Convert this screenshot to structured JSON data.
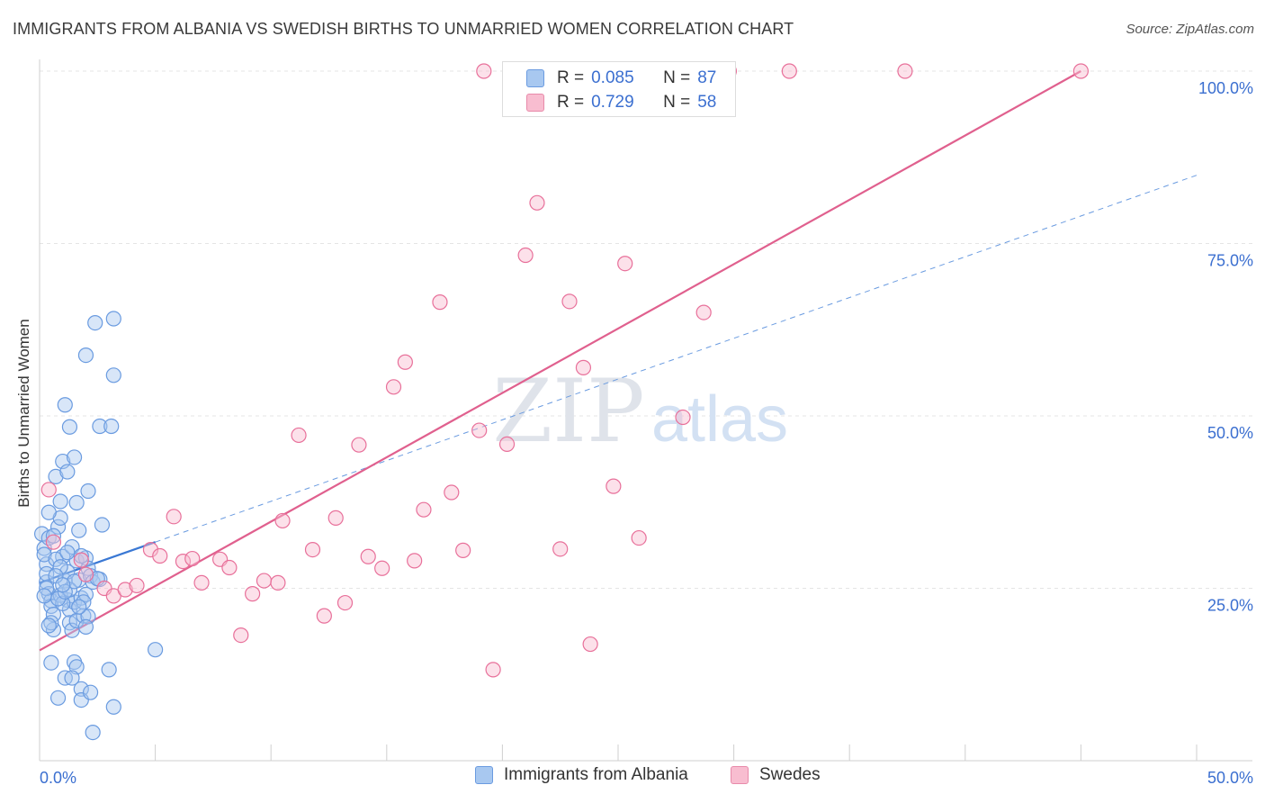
{
  "title": "IMMIGRANTS FROM ALBANIA VS SWEDISH BIRTHS TO UNMARRIED WOMEN CORRELATION CHART",
  "source": "Source: ZipAtlas.com",
  "watermark": {
    "zip": "ZIP",
    "atlas": "atlas"
  },
  "legend_top": {
    "rows": [
      {
        "r_label": "R =",
        "r_value": "0.085",
        "n_label": "N =",
        "n_value": "87",
        "color": "#a8c8f0",
        "stroke": "#6a9be0"
      },
      {
        "r_label": "R =",
        "r_value": "0.729",
        "n_label": "N =",
        "n_value": "58",
        "color": "#f8bdd0",
        "stroke": "#e88aaa"
      }
    ]
  },
  "legend_bottom": {
    "items": [
      {
        "label": "Immigrants from Albania",
        "color": "#a8c8f0",
        "stroke": "#6a9be0"
      },
      {
        "label": "Swedes",
        "color": "#f8bdd0",
        "stroke": "#e88aaa"
      }
    ]
  },
  "chart_data": {
    "type": "scatter",
    "title": "IMMIGRANTS FROM ALBANIA VS SWEDISH BIRTHS TO UNMARRIED WOMEN CORRELATION CHART",
    "xlabel": "",
    "ylabel": "Births to Unmarried Women",
    "xlim": [
      0,
      50
    ],
    "ylim": [
      0,
      100
    ],
    "x_tick_labels": [
      {
        "value": 0,
        "label": "0.0%"
      },
      {
        "value": 50,
        "label": "50.0%"
      }
    ],
    "y_tick_labels": [
      {
        "value": 25,
        "label": "25.0%"
      },
      {
        "value": 50,
        "label": "50.0%"
      },
      {
        "value": 75,
        "label": "75.0%"
      },
      {
        "value": 100,
        "label": "100.0%"
      }
    ],
    "grid": true,
    "legend_position": "bottom",
    "series": [
      {
        "name": "Immigrants from Albania",
        "color": "#6a9be0",
        "fill": "#a8c8f0",
        "trend": {
          "x": [
            0,
            5
          ],
          "y": [
            25.8,
            31.7
          ]
        },
        "trend_extension": {
          "x": [
            5,
            50
          ],
          "y": [
            31.7,
            84.9
          ]
        },
        "points": [
          [
            0.1,
            32.9
          ],
          [
            0.2,
            30.8
          ],
          [
            0.3,
            28.5
          ],
          [
            0.3,
            25.9
          ],
          [
            0.4,
            24.2
          ],
          [
            0.5,
            23.2
          ],
          [
            0.5,
            22.4
          ],
          [
            0.6,
            19.0
          ],
          [
            0.5,
            14.2
          ],
          [
            0.4,
            32.3
          ],
          [
            0.7,
            41.2
          ],
          [
            0.8,
            33.9
          ],
          [
            0.9,
            37.6
          ],
          [
            0.9,
            35.2
          ],
          [
            1.0,
            43.4
          ],
          [
            1.2,
            41.9
          ],
          [
            1.0,
            29.6
          ],
          [
            1.1,
            26.1
          ],
          [
            1.2,
            23.3
          ],
          [
            1.3,
            21.9
          ],
          [
            1.3,
            20.0
          ],
          [
            1.4,
            18.9
          ],
          [
            1.1,
            12.0
          ],
          [
            0.8,
            9.1
          ],
          [
            1.1,
            51.6
          ],
          [
            1.3,
            48.4
          ],
          [
            1.5,
            44.0
          ],
          [
            1.6,
            37.4
          ],
          [
            1.7,
            33.4
          ],
          [
            1.6,
            29.0
          ],
          [
            1.7,
            26.2
          ],
          [
            1.5,
            23.0
          ],
          [
            1.6,
            20.3
          ],
          [
            1.8,
            23.6
          ],
          [
            1.9,
            21.0
          ],
          [
            1.5,
            14.3
          ],
          [
            1.6,
            13.6
          ],
          [
            1.4,
            12.0
          ],
          [
            1.8,
            10.4
          ],
          [
            1.8,
            8.8
          ],
          [
            2.0,
            58.8
          ],
          [
            2.1,
            39.1
          ],
          [
            2.0,
            29.4
          ],
          [
            2.1,
            27.9
          ],
          [
            2.2,
            26.8
          ],
          [
            2.3,
            25.9
          ],
          [
            2.0,
            24.1
          ],
          [
            2.1,
            20.9
          ],
          [
            2.0,
            19.4
          ],
          [
            2.2,
            9.9
          ],
          [
            2.3,
            4.1
          ],
          [
            2.4,
            63.5
          ],
          [
            2.6,
            48.5
          ],
          [
            2.7,
            34.2
          ],
          [
            2.6,
            26.3
          ],
          [
            3.1,
            48.5
          ],
          [
            3.2,
            55.9
          ],
          [
            3.2,
            64.1
          ],
          [
            3.0,
            13.2
          ],
          [
            3.2,
            7.8
          ],
          [
            5.0,
            16.1
          ],
          [
            0.2,
            29.9
          ],
          [
            0.3,
            27.1
          ],
          [
            0.6,
            32.6
          ],
          [
            0.7,
            29.2
          ],
          [
            0.9,
            24.0
          ],
          [
            1.2,
            27.4
          ],
          [
            1.0,
            22.8
          ],
          [
            1.3,
            24.8
          ],
          [
            0.4,
            36.0
          ],
          [
            0.8,
            23.5
          ],
          [
            1.5,
            26.0
          ],
          [
            0.6,
            21.2
          ],
          [
            1.9,
            23.0
          ],
          [
            0.9,
            28.1
          ],
          [
            1.4,
            31.0
          ],
          [
            0.5,
            20.0
          ],
          [
            1.7,
            22.3
          ],
          [
            0.3,
            25.0
          ],
          [
            1.2,
            30.2
          ],
          [
            0.7,
            26.8
          ],
          [
            2.5,
            26.4
          ],
          [
            0.2,
            23.9
          ],
          [
            1.1,
            24.5
          ],
          [
            0.4,
            19.6
          ],
          [
            1.8,
            29.7
          ],
          [
            1.0,
            25.5
          ]
        ]
      },
      {
        "name": "Swedes",
        "color": "#e8709a",
        "fill": "#f8bdd0",
        "trend": {
          "x": [
            0,
            45
          ],
          "y": [
            16.0,
            100.0
          ]
        },
        "points": [
          [
            0.4,
            39.3
          ],
          [
            0.6,
            31.7
          ],
          [
            1.8,
            29.1
          ],
          [
            2.0,
            27.0
          ],
          [
            2.8,
            25.0
          ],
          [
            3.2,
            23.9
          ],
          [
            3.7,
            24.8
          ],
          [
            4.2,
            25.4
          ],
          [
            4.8,
            30.6
          ],
          [
            5.2,
            29.7
          ],
          [
            5.8,
            35.4
          ],
          [
            6.2,
            28.9
          ],
          [
            6.6,
            29.3
          ],
          [
            7.0,
            25.8
          ],
          [
            7.8,
            29.2
          ],
          [
            8.2,
            28.0
          ],
          [
            8.7,
            18.2
          ],
          [
            9.2,
            24.2
          ],
          [
            9.7,
            26.1
          ],
          [
            10.3,
            25.8
          ],
          [
            10.5,
            34.8
          ],
          [
            11.2,
            47.2
          ],
          [
            11.8,
            30.6
          ],
          [
            12.3,
            21.0
          ],
          [
            12.8,
            35.2
          ],
          [
            13.2,
            22.9
          ],
          [
            13.8,
            45.8
          ],
          [
            14.2,
            29.6
          ],
          [
            14.8,
            27.9
          ],
          [
            15.3,
            54.2
          ],
          [
            15.8,
            57.8
          ],
          [
            16.2,
            29.0
          ],
          [
            16.6,
            36.4
          ],
          [
            17.3,
            66.5
          ],
          [
            17.8,
            38.9
          ],
          [
            18.3,
            30.5
          ],
          [
            19.0,
            47.9
          ],
          [
            19.2,
            100.0
          ],
          [
            19.6,
            13.2
          ],
          [
            20.2,
            45.9
          ],
          [
            21.0,
            73.3
          ],
          [
            21.5,
            80.9
          ],
          [
            21.8,
            100.0
          ],
          [
            22.5,
            30.7
          ],
          [
            22.9,
            66.6
          ],
          [
            23.5,
            57.0
          ],
          [
            23.8,
            16.9
          ],
          [
            24.2,
            100.0
          ],
          [
            24.8,
            39.8
          ],
          [
            25.3,
            72.1
          ],
          [
            25.9,
            32.3
          ],
          [
            27.8,
            49.8
          ],
          [
            28.2,
            100.0
          ],
          [
            28.7,
            65.0
          ],
          [
            29.8,
            100.0
          ],
          [
            32.4,
            100.0
          ],
          [
            37.4,
            100.0
          ],
          [
            45.0,
            100.0
          ]
        ]
      }
    ]
  }
}
